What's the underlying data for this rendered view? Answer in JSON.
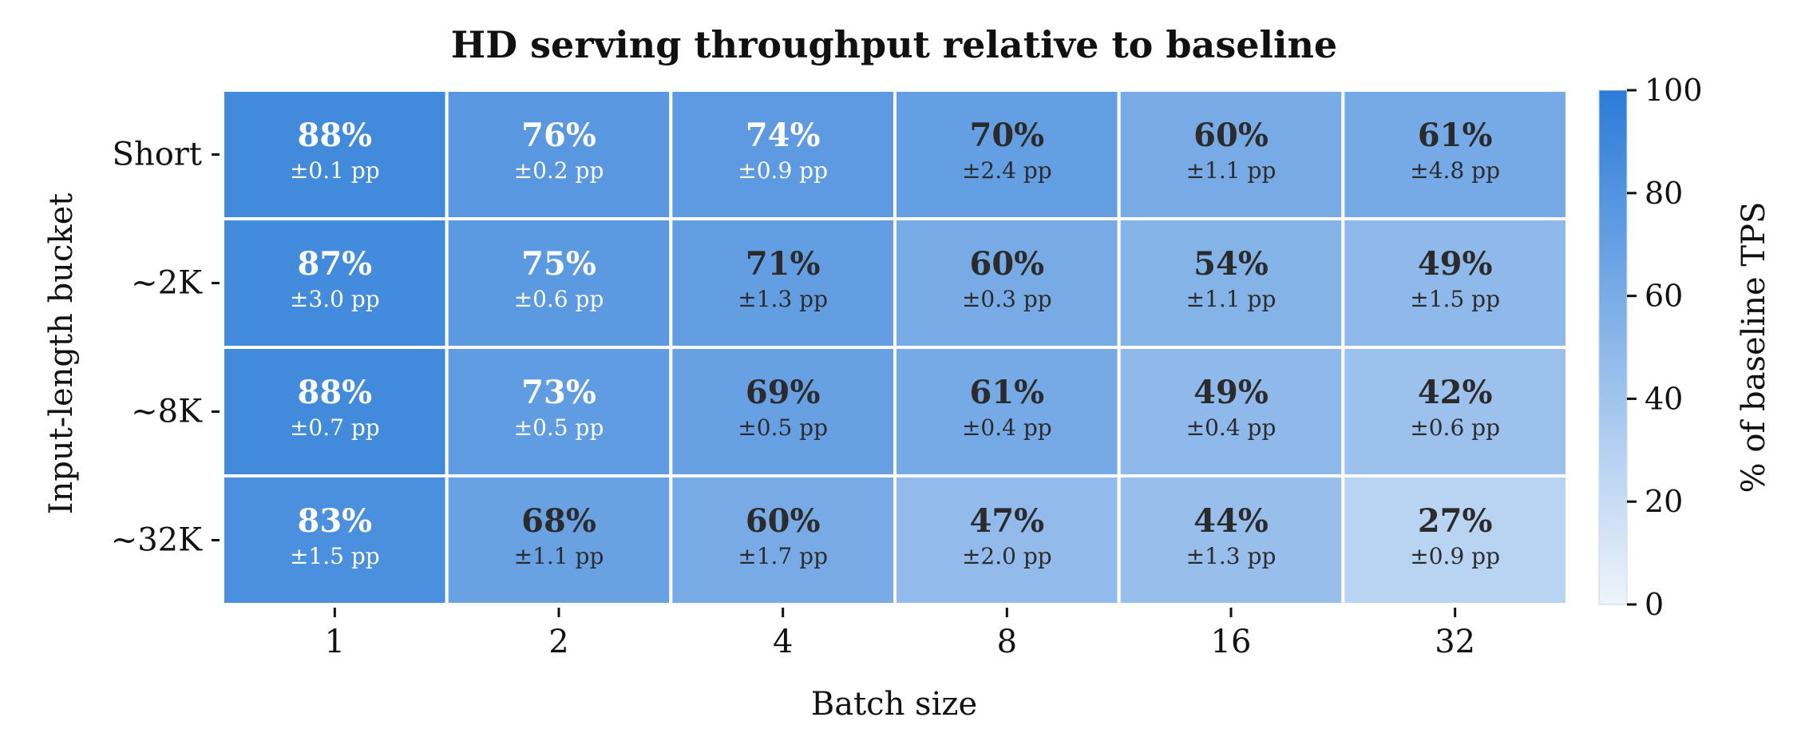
{
  "chart_data": {
    "type": "heatmap",
    "title": "HD serving throughput relative to baseline",
    "xlabel": "Batch size",
    "ylabel": "Input-length bucket",
    "x_categories": [
      "1",
      "2",
      "4",
      "8",
      "16",
      "32"
    ],
    "y_categories": [
      "Short",
      "~2K",
      "~8K",
      "~32K"
    ],
    "values": [
      [
        88,
        76,
        74,
        70,
        60,
        61
      ],
      [
        87,
        75,
        71,
        60,
        54,
        49
      ],
      [
        88,
        73,
        69,
        61,
        49,
        42
      ],
      [
        83,
        68,
        60,
        47,
        44,
        27
      ]
    ],
    "cell_labels": [
      [
        "88%",
        "76%",
        "74%",
        "70%",
        "60%",
        "61%"
      ],
      [
        "87%",
        "75%",
        "71%",
        "60%",
        "54%",
        "49%"
      ],
      [
        "88%",
        "73%",
        "69%",
        "61%",
        "49%",
        "42%"
      ],
      [
        "83%",
        "68%",
        "60%",
        "47%",
        "44%",
        "27%"
      ]
    ],
    "cell_sublabels": [
      [
        "±0.1 pp",
        "±0.2 pp",
        "±0.9 pp",
        "±2.4 pp",
        "±1.1 pp",
        "±4.8 pp"
      ],
      [
        "±3.0 pp",
        "±0.6 pp",
        "±1.3 pp",
        "±0.3 pp",
        "±1.1 pp",
        "±1.5 pp"
      ],
      [
        "±0.7 pp",
        "±0.5 pp",
        "±0.5 pp",
        "±0.4 pp",
        "±0.4 pp",
        "±0.6 pp"
      ],
      [
        "±1.5 pp",
        "±1.1 pp",
        "±1.7 pp",
        "±2.0 pp",
        "±1.3 pp",
        "±0.9 pp"
      ]
    ],
    "colorbar": {
      "label": "% of baseline TPS",
      "range": [
        0,
        100
      ],
      "ticks": [
        "0",
        "20",
        "40",
        "60",
        "80",
        "100"
      ],
      "color_low": "#eef4fb",
      "color_high": "#2a7bd8"
    },
    "text_color_dark": "#2b2b2b",
    "text_color_light": "#ffffff",
    "grid": false
  }
}
